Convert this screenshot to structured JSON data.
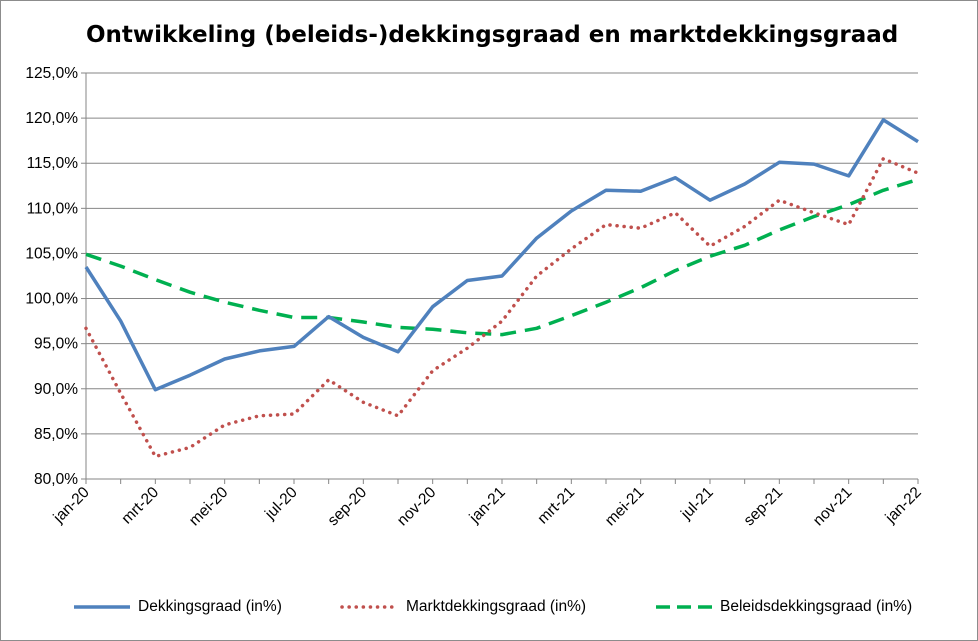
{
  "chart_data": {
    "type": "line",
    "title": "Ontwikkeling (beleids-)dekkingsgraad en marktdekkingsgraad",
    "xlabel": "",
    "ylabel": "",
    "ylim": [
      80,
      125
    ],
    "y_ticks": [
      "80,0%",
      "85,0%",
      "90,0%",
      "95,0%",
      "100,0%",
      "105,0%",
      "110,0%",
      "115,0%",
      "120,0%",
      "125,0%"
    ],
    "x_tick_labels": [
      "jan-20",
      "mrt-20",
      "mei-20",
      "jul-20",
      "sep-20",
      "nov-20",
      "jan-21",
      "mrt-21",
      "mei-21",
      "jul-21",
      "sep-21",
      "nov-21",
      "jan-22"
    ],
    "categories": [
      "jan-20",
      "feb-20",
      "mrt-20",
      "apr-20",
      "mei-20",
      "jun-20",
      "jul-20",
      "aug-20",
      "sep-20",
      "okt-20",
      "nov-20",
      "dec-20",
      "jan-21",
      "feb-21",
      "mrt-21",
      "apr-21",
      "mei-21",
      "jun-21",
      "jul-21",
      "aug-21",
      "sep-21",
      "okt-21",
      "nov-21",
      "dec-21",
      "jan-22"
    ],
    "grid": true,
    "legend_position": "bottom",
    "series": [
      {
        "name": "Dekkingsgraad (in%)",
        "color": "#4f81bd",
        "style": "solid",
        "values": [
          103.5,
          97.5,
          89.9,
          91.5,
          93.3,
          94.2,
          94.7,
          98.0,
          95.7,
          94.1,
          99.1,
          102.0,
          102.5,
          106.7,
          109.7,
          112.0,
          111.9,
          113.4,
          110.9,
          112.7,
          115.1,
          114.9,
          113.6,
          119.8,
          117.4
        ]
      },
      {
        "name": "Marktdekkingsgraad (in%)",
        "color": "#c0504d",
        "style": "dotted",
        "values": [
          96.7,
          89.5,
          82.5,
          83.5,
          86.0,
          87.0,
          87.2,
          91.0,
          88.5,
          87.0,
          92.0,
          94.5,
          97.5,
          102.5,
          105.5,
          108.2,
          107.8,
          109.5,
          105.8,
          108.0,
          110.9,
          109.5,
          108.2,
          115.5,
          113.9
        ]
      },
      {
        "name": "Beleidsdekkingsgraad (in%)",
        "color": "#00b050",
        "style": "dashed",
        "values": [
          104.9,
          103.6,
          102.1,
          100.7,
          99.6,
          98.7,
          97.9,
          97.9,
          97.4,
          96.8,
          96.6,
          96.2,
          96.0,
          96.7,
          98.1,
          99.6,
          101.2,
          103.1,
          104.7,
          105.9,
          107.6,
          109.1,
          110.4,
          112.0,
          113.2
        ]
      }
    ]
  }
}
